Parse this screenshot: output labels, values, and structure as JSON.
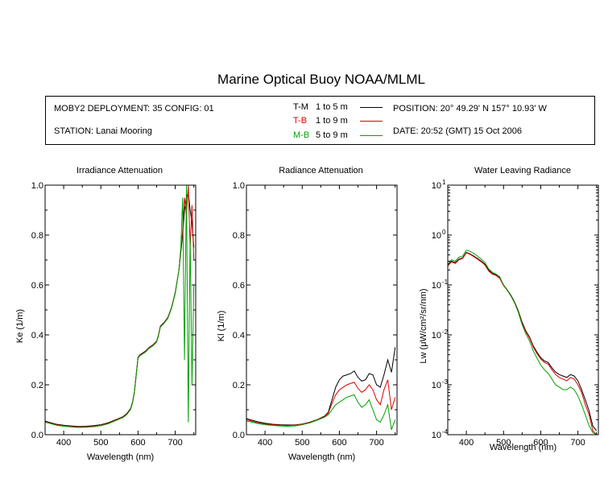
{
  "title": "Marine Optical Buoy NOAA/MLML",
  "info": {
    "deployment": "MOBY2 DEPLOYMENT: 35 CONFIG: 01",
    "station": "STATION: Lanai Mooring",
    "position": "POSITION: 20° 49.29' N   157° 10.93' W",
    "date": "DATE: 20:52 (GMT) 15 Oct 2006",
    "legend": [
      {
        "code": "T-M",
        "range": "1 to 5  m",
        "color": "#000000"
      },
      {
        "code": "T-B",
        "range": "1 to 9  m",
        "color": "#e00000"
      },
      {
        "code": "M-B",
        "range": "5 to 9  m",
        "color": "#00a000"
      }
    ]
  },
  "chart_data": [
    {
      "type": "line",
      "title": "Irradiance Attenuation",
      "xlabel": "Wavelength (nm)",
      "ylabel": "Ke  (1/m)",
      "xlim": [
        350,
        755
      ],
      "ylim": [
        0,
        1.0
      ],
      "xticks": [
        "400",
        "500",
        "600",
        "700"
      ],
      "yticks": [
        "0.0",
        "0.2",
        "0.4",
        "0.6",
        "0.8",
        "1.0"
      ],
      "series": [
        {
          "name": "T-M",
          "color": "#000000",
          "x": [
            350,
            360,
            380,
            400,
            420,
            440,
            460,
            480,
            500,
            520,
            540,
            560,
            570,
            580,
            585,
            590,
            595,
            600,
            605,
            610,
            620,
            630,
            640,
            650,
            655,
            660,
            670,
            680,
            690,
            700,
            710,
            720,
            725,
            730,
            735,
            740,
            745,
            750
          ],
          "y": [
            0.055,
            0.05,
            0.042,
            0.038,
            0.035,
            0.033,
            0.034,
            0.036,
            0.04,
            0.048,
            0.06,
            0.073,
            0.085,
            0.105,
            0.13,
            0.17,
            0.24,
            0.31,
            0.32,
            0.325,
            0.335,
            0.35,
            0.36,
            0.375,
            0.4,
            0.435,
            0.45,
            0.47,
            0.51,
            0.57,
            0.66,
            0.8,
            0.9,
            0.95,
            0.97,
            0.9,
            0.85,
            0.75
          ]
        },
        {
          "name": "T-B",
          "color": "#e00000",
          "x": [
            350,
            360,
            380,
            400,
            420,
            440,
            460,
            480,
            500,
            520,
            540,
            560,
            570,
            580,
            585,
            590,
            595,
            600,
            605,
            610,
            620,
            630,
            640,
            650,
            655,
            660,
            670,
            680,
            690,
            700,
            710,
            720,
            725,
            730,
            735,
            740,
            745,
            750
          ],
          "y": [
            0.052,
            0.048,
            0.04,
            0.036,
            0.033,
            0.031,
            0.032,
            0.034,
            0.038,
            0.046,
            0.058,
            0.071,
            0.083,
            0.103,
            0.128,
            0.168,
            0.238,
            0.308,
            0.318,
            0.323,
            0.333,
            0.348,
            0.358,
            0.373,
            0.398,
            0.433,
            0.448,
            0.468,
            0.508,
            0.568,
            0.66,
            0.82,
            0.95,
            0.88,
            1.0,
            0.75,
            0.92,
            0.7
          ]
        },
        {
          "name": "M-B",
          "color": "#00a000",
          "x": [
            350,
            360,
            380,
            400,
            420,
            440,
            460,
            480,
            500,
            520,
            540,
            560,
            570,
            580,
            585,
            590,
            595,
            600,
            605,
            610,
            620,
            630,
            640,
            650,
            655,
            660,
            670,
            680,
            690,
            700,
            710,
            715,
            720,
            725,
            730,
            735,
            740,
            745,
            750
          ],
          "y": [
            0.05,
            0.046,
            0.038,
            0.034,
            0.031,
            0.029,
            0.03,
            0.032,
            0.036,
            0.044,
            0.056,
            0.069,
            0.081,
            0.101,
            0.126,
            0.166,
            0.236,
            0.306,
            0.316,
            0.321,
            0.331,
            0.346,
            0.356,
            0.371,
            0.396,
            0.431,
            0.446,
            0.466,
            0.506,
            0.566,
            0.66,
            0.75,
            0.95,
            0.3,
            1.0,
            0.05,
            0.8,
            0.2,
            0.6
          ]
        }
      ]
    },
    {
      "type": "line",
      "title": "Radiance Attenuation",
      "xlabel": "Wavelength (nm)",
      "ylabel": "Kl  (1/m)",
      "xlim": [
        350,
        755
      ],
      "ylim": [
        0,
        1.0
      ],
      "xticks": [
        "400",
        "500",
        "600",
        "700"
      ],
      "yticks": [
        "0.0",
        "0.2",
        "0.4",
        "0.6",
        "0.8",
        "1.0"
      ],
      "series": [
        {
          "name": "T-M",
          "color": "#000000",
          "x": [
            350,
            360,
            380,
            400,
            420,
            440,
            460,
            480,
            500,
            520,
            540,
            560,
            570,
            580,
            590,
            600,
            610,
            620,
            630,
            640,
            650,
            660,
            670,
            680,
            690,
            700,
            710,
            720,
            730,
            740,
            750
          ],
          "y": [
            0.065,
            0.06,
            0.052,
            0.046,
            0.042,
            0.04,
            0.039,
            0.039,
            0.043,
            0.05,
            0.06,
            0.075,
            0.09,
            0.14,
            0.19,
            0.22,
            0.235,
            0.24,
            0.245,
            0.255,
            0.23,
            0.215,
            0.22,
            0.245,
            0.24,
            0.2,
            0.19,
            0.24,
            0.3,
            0.25,
            0.35
          ]
        },
        {
          "name": "T-B",
          "color": "#e00000",
          "x": [
            350,
            360,
            380,
            400,
            420,
            440,
            460,
            480,
            500,
            520,
            540,
            560,
            570,
            580,
            590,
            600,
            610,
            620,
            630,
            640,
            650,
            660,
            670,
            680,
            690,
            700,
            710,
            720,
            730,
            740,
            750
          ],
          "y": [
            0.06,
            0.056,
            0.048,
            0.043,
            0.04,
            0.038,
            0.037,
            0.038,
            0.042,
            0.049,
            0.059,
            0.073,
            0.086,
            0.125,
            0.16,
            0.18,
            0.19,
            0.2,
            0.205,
            0.21,
            0.185,
            0.17,
            0.18,
            0.2,
            0.18,
            0.14,
            0.12,
            0.18,
            0.22,
            0.1,
            0.15
          ]
        },
        {
          "name": "M-B",
          "color": "#00a000",
          "x": [
            350,
            360,
            380,
            400,
            420,
            440,
            460,
            480,
            500,
            520,
            540,
            560,
            570,
            580,
            590,
            600,
            610,
            620,
            630,
            640,
            650,
            660,
            670,
            680,
            690,
            700,
            710,
            720,
            730,
            740,
            750
          ],
          "y": [
            0.055,
            0.052,
            0.045,
            0.04,
            0.037,
            0.035,
            0.034,
            0.035,
            0.04,
            0.047,
            0.058,
            0.07,
            0.08,
            0.1,
            0.12,
            0.13,
            0.14,
            0.15,
            0.155,
            0.16,
            0.13,
            0.11,
            0.12,
            0.14,
            0.1,
            0.06,
            0.05,
            0.08,
            0.12,
            0.02,
            0.06
          ]
        }
      ]
    },
    {
      "type": "line",
      "title": "Water Leaving Radiance",
      "xlabel": "Wavelength (nm)",
      "ylabel": "Lw  (μW/cm²/sr/nm)",
      "xlim": [
        350,
        755
      ],
      "yscale": "log",
      "ylim": [
        0.0001,
        10
      ],
      "xticks": [
        "400",
        "500",
        "600",
        "700"
      ],
      "yticks": [
        {
          "base": "10",
          "exp": "1"
        },
        {
          "base": "10",
          "exp": "0"
        },
        {
          "base": "10",
          "exp": "-1"
        },
        {
          "base": "10",
          "exp": "-2"
        },
        {
          "base": "10",
          "exp": "-3"
        },
        {
          "base": "10",
          "exp": "-4"
        }
      ],
      "series": [
        {
          "name": "T-M",
          "color": "#000000",
          "x": [
            350,
            360,
            370,
            380,
            390,
            400,
            410,
            420,
            430,
            440,
            450,
            460,
            470,
            480,
            490,
            500,
            510,
            520,
            530,
            540,
            550,
            560,
            570,
            580,
            590,
            600,
            610,
            620,
            630,
            640,
            650,
            660,
            670,
            680,
            690,
            700,
            710,
            720,
            730,
            740,
            750
          ],
          "y": [
            0.25,
            0.3,
            0.28,
            0.33,
            0.35,
            0.45,
            0.42,
            0.38,
            0.34,
            0.3,
            0.26,
            0.2,
            0.17,
            0.16,
            0.14,
            0.1,
            0.08,
            0.062,
            0.045,
            0.03,
            0.018,
            0.012,
            0.009,
            0.006,
            0.0045,
            0.0035,
            0.003,
            0.0028,
            0.0022,
            0.0018,
            0.0016,
            0.0015,
            0.0014,
            0.0016,
            0.0015,
            0.0012,
            0.0008,
            0.0005,
            0.0003,
            0.00015,
            0.00012
          ]
        },
        {
          "name": "T-B",
          "color": "#e00000",
          "x": [
            350,
            360,
            370,
            380,
            390,
            400,
            410,
            420,
            430,
            440,
            450,
            460,
            470,
            480,
            490,
            500,
            510,
            520,
            530,
            540,
            550,
            560,
            570,
            580,
            590,
            600,
            610,
            620,
            630,
            640,
            650,
            660,
            670,
            680,
            690,
            700,
            710,
            720,
            730,
            740,
            750
          ],
          "y": [
            0.24,
            0.29,
            0.27,
            0.32,
            0.34,
            0.44,
            0.41,
            0.37,
            0.33,
            0.29,
            0.25,
            0.19,
            0.165,
            0.155,
            0.135,
            0.097,
            0.078,
            0.06,
            0.044,
            0.029,
            0.017,
            0.0115,
            0.0086,
            0.0057,
            0.0042,
            0.0033,
            0.0028,
            0.0026,
            0.002,
            0.0016,
            0.0014,
            0.0013,
            0.0012,
            0.0014,
            0.0013,
            0.001,
            0.0007,
            0.0004,
            0.00025,
            0.00012,
            0.0001
          ]
        },
        {
          "name": "M-B",
          "color": "#00a000",
          "x": [
            350,
            360,
            370,
            380,
            390,
            400,
            410,
            420,
            430,
            440,
            450,
            460,
            470,
            480,
            490,
            500,
            510,
            520,
            530,
            540,
            550,
            560,
            570,
            580,
            590,
            600,
            610,
            620,
            630,
            640,
            650,
            660,
            670,
            680,
            690,
            700,
            710,
            720,
            730,
            740,
            750
          ],
          "y": [
            0.26,
            0.32,
            0.3,
            0.36,
            0.38,
            0.5,
            0.47,
            0.43,
            0.38,
            0.33,
            0.28,
            0.21,
            0.18,
            0.165,
            0.145,
            0.1,
            0.079,
            0.06,
            0.043,
            0.028,
            0.016,
            0.0105,
            0.0075,
            0.0048,
            0.0034,
            0.0025,
            0.002,
            0.0017,
            0.0013,
            0.001,
            0.0009,
            0.0008,
            0.0008,
            0.0009,
            0.0008,
            0.0006,
            0.0004,
            0.00025,
            0.00015,
            0.00011,
            0.0001
          ]
        }
      ]
    }
  ]
}
